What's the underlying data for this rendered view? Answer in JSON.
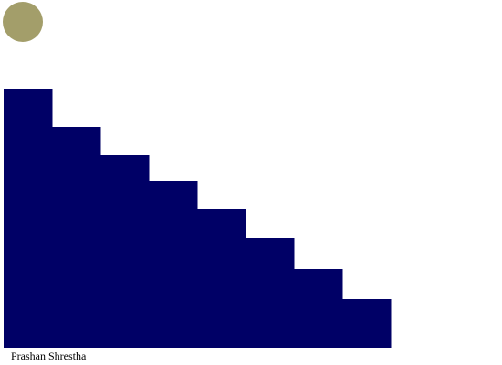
{
  "colors": {
    "background": "#ffffff",
    "staircase": "#000066",
    "circle": "#a39e6a",
    "text": "#000000"
  },
  "staircase": {
    "step_count": 8
  },
  "caption": {
    "author": "Prashan Shrestha"
  }
}
